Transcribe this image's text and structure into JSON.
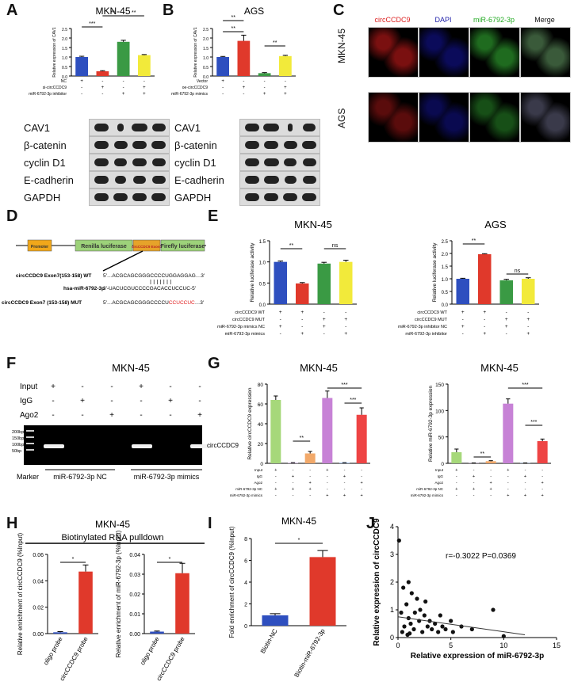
{
  "panels": {
    "A": {
      "label": "A",
      "title": "MKN-45",
      "ylabel": "Relative expression of CAV1",
      "row_labels": [
        "NC",
        "si-circCCDC9",
        "miR-6792-3p inhibitor"
      ],
      "row_signs": [
        [
          "+",
          "-",
          "-",
          "-"
        ],
        [
          "-",
          "+",
          "-",
          "+"
        ],
        [
          "-",
          "-",
          "+",
          "+"
        ]
      ],
      "blots": [
        "CAV1",
        "β-catenin",
        "cyclin D1",
        "E-cadherin",
        "GAPDH"
      ],
      "sig": [
        "***",
        "**",
        "**"
      ],
      "chart_data": {
        "type": "bar",
        "values": [
          1.0,
          0.25,
          1.8,
          1.1
        ],
        "errors": [
          0.04,
          0.03,
          0.08,
          0.03
        ],
        "ylim": [
          0,
          2.5
        ],
        "yticks": [
          "0.0",
          "0.5",
          "1.0",
          "1.5",
          "2.0",
          "2.5"
        ],
        "colors": [
          "#2e4fbf",
          "#e0392b",
          "#3a9a44",
          "#f2ea3a"
        ]
      }
    },
    "B": {
      "label": "B",
      "title": "AGS",
      "ylabel": "Relative expression of CAV1",
      "row_labels": [
        "Vector",
        "oe-circCCDC9",
        "miR-6792-3p mimics"
      ],
      "row_signs": [
        [
          "+",
          "-",
          "-",
          "-"
        ],
        [
          "-",
          "+",
          "-",
          "+"
        ],
        [
          "-",
          "-",
          "+",
          "+"
        ]
      ],
      "blots": [
        "CAV1",
        "β-catenin",
        "cyclin D1",
        "E-cadherin",
        "GAPDH"
      ],
      "sig": [
        "**",
        "**",
        "**"
      ],
      "chart_data": {
        "type": "bar",
        "values": [
          1.0,
          1.85,
          0.15,
          1.05
        ],
        "errors": [
          0.03,
          0.3,
          0.03,
          0.04
        ],
        "ylim": [
          0,
          2.5
        ],
        "yticks": [
          "0.0",
          "0.5",
          "1.0",
          "1.5",
          "2.0",
          "2.5"
        ],
        "colors": [
          "#2e4fbf",
          "#e0392b",
          "#3a9a44",
          "#f2ea3a"
        ]
      }
    },
    "C": {
      "label": "C",
      "headers": [
        "circCCDC9",
        "DAPI",
        "miR-6792-3p",
        "Merge"
      ],
      "header_colors": [
        "#d22",
        "#22a",
        "#2a2",
        "#111"
      ],
      "rows": [
        "MKN-45",
        "AGS"
      ]
    },
    "D": {
      "label": "D",
      "construct": [
        "Promoter",
        "Renilla luciferase",
        "circCCDC9 Exon7",
        "Firefly luciferase"
      ],
      "seq_labels": [
        "circCCDC9 Exon7(153-158) WT",
        "hsa-miR-6792-3p",
        "circCCDC9 Exon7 (153-158) MUT"
      ],
      "seq_wt": "5'…ACGCAGCGGGCCCCUGGAGGAG…3'",
      "seq_mir": "3'-UACUCGUCCCCGACACCUCCUC-5'",
      "seq_mut_prefix": "5'…ACGCAGCGGGCCCCU",
      "seq_mut_red": "CCUCCUC",
      "seq_mut_suffix": "…3'"
    },
    "E": {
      "label": "E",
      "left": {
        "title": "MKN-45",
        "ylabel": "Relative luciferase activity",
        "row_labels": [
          "circCCDC9 WT",
          "circCCDC9 MUT",
          "miR-6792-3p mimics NC",
          "miR-6792-3p mimics"
        ],
        "row_signs": [
          [
            "+",
            "+",
            "-",
            "-"
          ],
          [
            "-",
            "-",
            "+",
            "+"
          ],
          [
            "+",
            "-",
            "+",
            "-"
          ],
          [
            "-",
            "+",
            "-",
            "+"
          ]
        ],
        "sig": [
          "**",
          "ns"
        ],
        "chart_data": {
          "type": "bar",
          "values": [
            1.0,
            0.49,
            0.96,
            1.0
          ],
          "errors": [
            0.02,
            0.02,
            0.03,
            0.04
          ],
          "ylim": [
            0,
            1.5
          ],
          "yticks": [
            "0.0",
            "0.5",
            "1.0",
            "1.5"
          ],
          "colors": [
            "#2e4fbf",
            "#e0392b",
            "#3a9a44",
            "#f2ea3a"
          ]
        }
      },
      "right": {
        "title": "AGS",
        "ylabel": "Relative luciferase activity",
        "row_labels": [
          "circCCDC9 WT",
          "circCCDC9 MUT",
          "miR-6792-3p inhibitor NC",
          "miR-6792-3p inhibitor"
        ],
        "row_signs": [
          [
            "+",
            "+",
            "-",
            "-"
          ],
          [
            "-",
            "-",
            "+",
            "+"
          ],
          [
            "+",
            "-",
            "+",
            "-"
          ],
          [
            "-",
            "+",
            "-",
            "+"
          ]
        ],
        "sig": [
          "**",
          "ns"
        ],
        "chart_data": {
          "type": "bar",
          "values": [
            1.0,
            1.97,
            0.94,
            1.0
          ],
          "errors": [
            0.02,
            0.02,
            0.04,
            0.04
          ],
          "ylim": [
            0,
            2.5
          ],
          "yticks": [
            "0.0",
            "0.5",
            "1.0",
            "1.5",
            "2.0",
            "2.5"
          ],
          "colors": [
            "#2e4fbf",
            "#e0392b",
            "#3a9a44",
            "#f2ea3a"
          ]
        }
      }
    },
    "F": {
      "label": "F",
      "title": "MKN-45",
      "row_labels": [
        "Input",
        "IgG",
        "Ago2"
      ],
      "row_signs": [
        [
          "+",
          "-",
          "-",
          "+",
          "-",
          "-"
        ],
        [
          "-",
          "+",
          "-",
          "-",
          "+",
          "-"
        ],
        [
          "-",
          "-",
          "+",
          "-",
          "-",
          "+"
        ]
      ],
      "ladder": [
        "200bp",
        "150bp",
        "100bp",
        "50bp"
      ],
      "band_label": "circCCDC9",
      "marker": "Marker",
      "groups": [
        "miR-6792-3p NC",
        "miR-6792-3p mimics"
      ]
    },
    "G": {
      "label": "G",
      "left": {
        "title": "MKN-45",
        "ylabel": "Relative circCCDC9 expression",
        "row_labels": [
          "Input",
          "IgG",
          "Ago2",
          "miR-6792-3p NC",
          "miR-6792-3p mimics"
        ],
        "row_signs": [
          [
            "+",
            "-",
            "-",
            "+",
            "-",
            "-"
          ],
          [
            "-",
            "+",
            "-",
            "-",
            "+",
            "-"
          ],
          [
            "-",
            "-",
            "+",
            "-",
            "-",
            "+"
          ],
          [
            "+",
            "+",
            "+",
            "-",
            "-",
            "-"
          ],
          [
            "-",
            "-",
            "-",
            "+",
            "+",
            "+"
          ]
        ],
        "sig": [
          "**",
          "***",
          "***"
        ],
        "chart_data": {
          "type": "bar",
          "values": [
            64,
            0.5,
            10,
            66,
            0.5,
            49
          ],
          "errors": [
            4,
            0.2,
            2,
            7,
            0.2,
            7
          ],
          "ylim": [
            0,
            80
          ],
          "yticks": [
            "0",
            "20",
            "40",
            "60",
            "80"
          ],
          "colors": [
            "#a6d87a",
            "#c49ad8",
            "#f2a96a",
            "#c782d6",
            "#6fa0e8",
            "#ee4444"
          ]
        }
      },
      "right": {
        "title": "MKN-45",
        "ylabel": "Relative miR-6792-3p expression",
        "row_labels": [
          "Input",
          "IgG",
          "Ago2",
          "miR-6792-3p NC",
          "miR-6792-3p mimics"
        ],
        "row_signs": [
          [
            "+",
            "-",
            "-",
            "+",
            "-",
            "-"
          ],
          [
            "-",
            "+",
            "-",
            "-",
            "+",
            "-"
          ],
          [
            "-",
            "-",
            "+",
            "-",
            "-",
            "+"
          ],
          [
            "+",
            "+",
            "+",
            "-",
            "-",
            "-"
          ],
          [
            "-",
            "-",
            "-",
            "+",
            "+",
            "+"
          ]
        ],
        "sig": [
          "**",
          "***",
          "***"
        ],
        "chart_data": {
          "type": "bar",
          "values": [
            21,
            0.5,
            4,
            113,
            0.5,
            42
          ],
          "errors": [
            6,
            0.2,
            1,
            9,
            0.2,
            4
          ],
          "ylim": [
            0,
            150
          ],
          "yticks": [
            "0",
            "50",
            "100",
            "150"
          ],
          "colors": [
            "#a6d87a",
            "#c49ad8",
            "#f2a96a",
            "#c782d6",
            "#6fa0e8",
            "#ee4444"
          ]
        }
      }
    },
    "H": {
      "label": "H",
      "title": "MKN-45",
      "subtitle": "Biotinylated RNA pulldown",
      "left": {
        "ylabel": "Relative enrichment of circCCDC9 (%Input)",
        "sig": "**",
        "chart_data": {
          "type": "bar",
          "categories": [
            "oligo probe",
            "circCCDC9 probe"
          ],
          "values": [
            0.001,
            0.047
          ],
          "errors": [
            0.0005,
            0.005
          ],
          "ylim": [
            0,
            0.06
          ],
          "yticks": [
            "0.00",
            "0.02",
            "0.04",
            "0.06"
          ],
          "colors": [
            "#2e4fbf",
            "#e0392b"
          ]
        }
      },
      "right": {
        "ylabel": "Relative enrichment of miR-6792-3p (%Input)",
        "sig": "**",
        "chart_data": {
          "type": "bar",
          "categories": [
            "oligo probe",
            "circCCDC9 probe"
          ],
          "values": [
            0.001,
            0.0305
          ],
          "errors": [
            0.0003,
            0.005
          ],
          "ylim": [
            0,
            0.04
          ],
          "yticks": [
            "0.00",
            "0.01",
            "0.02",
            "0.03",
            "0.04"
          ],
          "colors": [
            "#2e4fbf",
            "#e0392b"
          ]
        }
      }
    },
    "I": {
      "label": "I",
      "title": "MKN-45",
      "ylabel": "Fold enrichment of circCCDC9 (%Input)",
      "sig": "**",
      "chart_data": {
        "type": "bar",
        "categories": [
          "Biotin-NC",
          "Biotin-miR-6792-3p"
        ],
        "values": [
          0.95,
          6.3
        ],
        "errors": [
          0.15,
          0.6
        ],
        "ylim": [
          0,
          8
        ],
        "yticks": [
          "0",
          "2",
          "4",
          "6",
          "8"
        ],
        "colors": [
          "#2e4fbf",
          "#e0392b"
        ]
      }
    },
    "J": {
      "label": "J",
      "stat": "r=-0.3022  P=0.0369",
      "xlabel": "Relative expression of miR-6792-3p",
      "ylabel": "Relative expression of circCCDC9",
      "chart_data": {
        "type": "scatter",
        "xlim": [
          0,
          15
        ],
        "ylim": [
          0,
          4
        ],
        "xticks": [
          "0",
          "5",
          "10",
          "15"
        ],
        "yticks": [
          "0",
          "1",
          "2",
          "3",
          "4"
        ],
        "points": [
          [
            0.1,
            3.5
          ],
          [
            0.3,
            0.9
          ],
          [
            0.5,
            1.8
          ],
          [
            0.6,
            0.4
          ],
          [
            0.8,
            1.2
          ],
          [
            1.0,
            0.7
          ],
          [
            1.0,
            2.0
          ],
          [
            1.2,
            0.5
          ],
          [
            1.3,
            1.6
          ],
          [
            1.5,
            0.3
          ],
          [
            1.6,
            0.9
          ],
          [
            1.8,
            1.4
          ],
          [
            2.0,
            0.6
          ],
          [
            2.1,
            1.0
          ],
          [
            2.3,
            0.2
          ],
          [
            2.5,
            0.8
          ],
          [
            2.6,
            1.3
          ],
          [
            2.8,
            0.4
          ],
          [
            3.0,
            0.6
          ],
          [
            3.2,
            0.3
          ],
          [
            3.5,
            0.5
          ],
          [
            3.8,
            0.2
          ],
          [
            4.0,
            0.8
          ],
          [
            4.2,
            0.4
          ],
          [
            4.5,
            0.3
          ],
          [
            5.0,
            0.6
          ],
          [
            5.2,
            0.2
          ],
          [
            6.0,
            0.4
          ],
          [
            7.0,
            0.3
          ],
          [
            9.0,
            1.0
          ],
          [
            10.0,
            0.05
          ],
          [
            0.4,
            0.2
          ],
          [
            0.9,
            0.1
          ],
          [
            1.1,
            0.15
          ]
        ],
        "fit": [
          [
            0,
            0.75
          ],
          [
            12,
            0.1
          ]
        ]
      }
    }
  }
}
